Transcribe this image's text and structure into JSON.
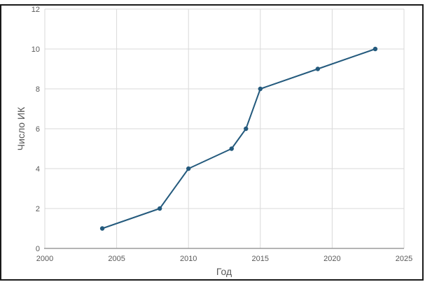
{
  "chart_data": {
    "type": "line",
    "title": "",
    "xlabel": "Год",
    "ylabel": "Число ИК",
    "x": [
      2004,
      2008,
      2010,
      2013,
      2014,
      2015,
      2019,
      2023
    ],
    "y": [
      1,
      2,
      4,
      5,
      6,
      8,
      9,
      10
    ],
    "xlim": [
      2000,
      2025
    ],
    "ylim": [
      0,
      12
    ],
    "xticks": [
      2000,
      2005,
      2010,
      2015,
      2020,
      2025
    ],
    "yticks": [
      0,
      2,
      4,
      6,
      8,
      10,
      12
    ],
    "grid": true,
    "legend": false,
    "line_color": "#245a7d",
    "marker_color": "#245a7d",
    "gridline_color": "#d9d9d9",
    "axis_line_color": "#9b9b9b",
    "tick_label_color": "#595959",
    "axis_title_color": "#595959",
    "plot_background": "#ffffff"
  },
  "frame": {
    "border_color": "#1a1a1a",
    "background": "#ffffff"
  }
}
